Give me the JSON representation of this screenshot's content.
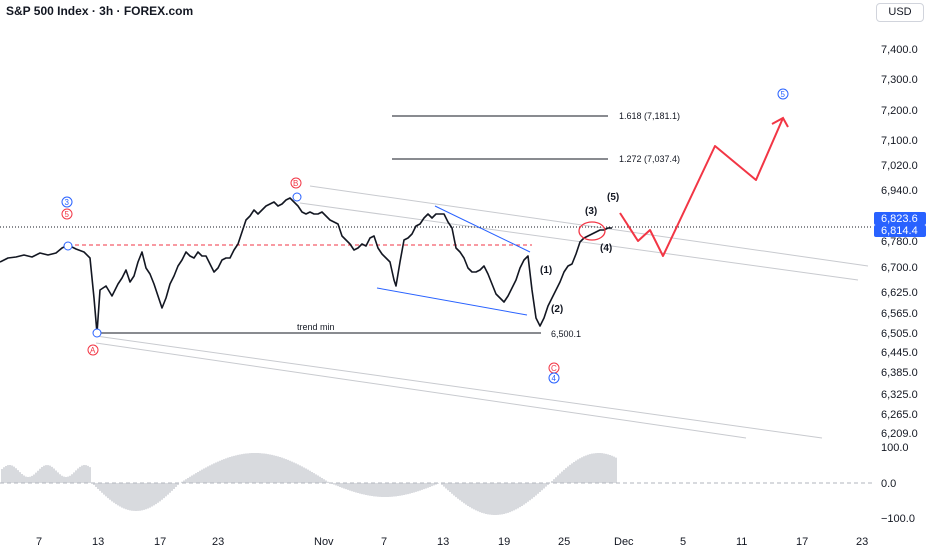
{
  "header": {
    "title": "S&P 500 Index · 3h · FOREX.com",
    "currency": "USD"
  },
  "price_axis": {
    "labels": [
      "6,209.0",
      "6,265.0",
      "6,325.0",
      "6,385.0",
      "6,445.0",
      "6,505.0",
      "6,565.0",
      "6,625.0",
      "6,700.0",
      "6,780.0",
      "6,940.0",
      "7,020.0",
      "7,100.0",
      "7,200.0",
      "7,300.0",
      "7,400.0"
    ],
    "current_price": "6,823.6",
    "last_price": "6,814.4"
  },
  "oscillator_axis": {
    "labels": [
      "100.0",
      "0.0",
      "−100.0"
    ]
  },
  "time_axis": {
    "labels": [
      "7",
      "13",
      "17",
      "23",
      "Nov",
      "7",
      "13",
      "19",
      "25",
      "Dec",
      "5",
      "11",
      "17",
      "23"
    ]
  },
  "annotations": {
    "fib_1618": "1.618 (7,181.1)",
    "fib_1272": "1.272 (7,037.4)",
    "trend_min": "trend min",
    "level_6500": "6,500.1",
    "wave_1": "(1)",
    "wave_2": "(2)",
    "wave_3": "(3)",
    "wave_4": "(4)",
    "wave_5": "(5)",
    "circle_3": "3",
    "circle_5_red": "5",
    "circle_A": "A",
    "circle_B": "B",
    "circle_C": "C",
    "circle_4": "4",
    "circle_5_blue": "5"
  },
  "colors": {
    "up_candle": "#131722",
    "price_tag": "#2962ff",
    "projection": "#f23645",
    "trendline_blue": "#2962ff",
    "red_dashed": "#f23645",
    "oscillator": "#b2b5be"
  }
}
